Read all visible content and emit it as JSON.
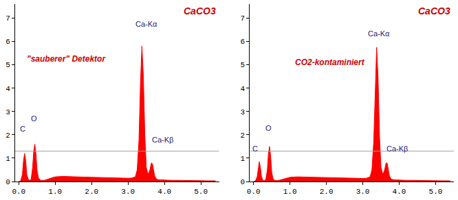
{
  "chart_data": [
    {
      "type": "area",
      "title": "CaCO3",
      "subtitle": "\"sauberer\" Detektor",
      "subtitle_at": {
        "x": 1.3,
        "y": 5.25
      },
      "color": "#ff0000",
      "grid": false,
      "threshold": 1.3,
      "x": [
        0.0,
        0.05,
        0.1,
        0.13,
        0.16,
        0.19,
        0.22,
        0.26,
        0.3,
        0.34,
        0.38,
        0.41,
        0.44,
        0.47,
        0.5,
        0.54,
        0.6,
        0.7,
        0.8,
        0.9,
        1.0,
        1.2,
        1.4,
        1.6,
        1.8,
        2.0,
        2.2,
        2.4,
        2.6,
        2.8,
        3.0,
        3.1,
        3.2,
        3.25,
        3.3,
        3.34,
        3.38,
        3.42,
        3.46,
        3.5,
        3.55,
        3.6,
        3.64,
        3.67,
        3.7,
        3.73,
        3.77,
        3.82,
        3.9,
        4.0,
        4.2,
        4.4,
        4.6,
        4.8,
        5.0,
        5.2,
        5.4
      ],
      "values": [
        0,
        0.02,
        0.3,
        0.9,
        1.2,
        0.9,
        0.3,
        0.1,
        0.05,
        0.1,
        0.6,
        1.3,
        1.6,
        1.2,
        0.5,
        0.15,
        0.05,
        0.05,
        0.1,
        0.15,
        0.2,
        0.22,
        0.2,
        0.2,
        0.19,
        0.18,
        0.17,
        0.16,
        0.15,
        0.15,
        0.14,
        0.15,
        0.2,
        0.5,
        1.8,
        4.2,
        5.8,
        4.5,
        2.0,
        0.6,
        0.3,
        0.5,
        0.8,
        0.75,
        0.5,
        0.25,
        0.12,
        0.08,
        0.07,
        0.06,
        0.05,
        0.05,
        0.04,
        0.04,
        0.03,
        0.03,
        0.03
      ],
      "xlim": [
        -0.1,
        5.5
      ],
      "xticks": [
        {
          "value": 0,
          "label": "0.0"
        },
        {
          "value": 1,
          "label": "1.0"
        },
        {
          "value": 2,
          "label": "2.0"
        },
        {
          "value": 3,
          "label": "3.0"
        },
        {
          "value": 4,
          "label": "4.0"
        },
        {
          "value": 5,
          "label": "5.0"
        }
      ],
      "ylim": [
        0,
        7.6
      ],
      "yticks": [
        0,
        1,
        2,
        3,
        4,
        5,
        6,
        7
      ],
      "annotations": [
        {
          "text": "C",
          "x": 0.1,
          "y": 2.25
        },
        {
          "text": "O",
          "x": 0.42,
          "y": 2.7
        },
        {
          "text": "Ca-Kα",
          "x": 3.5,
          "y": 6.75
        },
        {
          "text": "Ca-Kβ",
          "x": 3.95,
          "y": 1.8
        }
      ]
    },
    {
      "type": "area",
      "title": "CaCO3",
      "subtitle": "CO2-kontaminiert",
      "subtitle_at": {
        "x": 2.1,
        "y": 5.1
      },
      "color": "#ff0000",
      "grid": false,
      "threshold": 1.3,
      "x": [
        0.0,
        0.05,
        0.1,
        0.13,
        0.16,
        0.19,
        0.22,
        0.26,
        0.3,
        0.34,
        0.38,
        0.41,
        0.44,
        0.47,
        0.5,
        0.54,
        0.6,
        0.7,
        0.8,
        0.9,
        1.0,
        1.2,
        1.4,
        1.6,
        1.8,
        2.0,
        2.2,
        2.4,
        2.6,
        2.8,
        3.0,
        3.1,
        3.2,
        3.25,
        3.3,
        3.34,
        3.38,
        3.42,
        3.46,
        3.5,
        3.55,
        3.6,
        3.64,
        3.67,
        3.7,
        3.73,
        3.77,
        3.82,
        3.9,
        4.0,
        4.2,
        4.4,
        4.6,
        4.8,
        5.0,
        5.2,
        5.4
      ],
      "values": [
        0,
        0.02,
        0.2,
        0.6,
        0.85,
        0.6,
        0.2,
        0.05,
        0.03,
        0.1,
        0.5,
        1.2,
        1.5,
        1.1,
        0.4,
        0.1,
        0.04,
        0.05,
        0.1,
        0.14,
        0.18,
        0.2,
        0.19,
        0.18,
        0.18,
        0.17,
        0.16,
        0.15,
        0.14,
        0.14,
        0.13,
        0.14,
        0.2,
        0.5,
        1.7,
        4.1,
        5.75,
        4.4,
        1.9,
        0.6,
        0.3,
        0.5,
        0.8,
        0.78,
        0.5,
        0.25,
        0.12,
        0.08,
        0.07,
        0.06,
        0.05,
        0.05,
        0.04,
        0.04,
        0.03,
        0.03,
        0.03
      ],
      "xlim": [
        -0.1,
        5.5
      ],
      "xticks": [
        {
          "value": 0,
          "label": "0.0"
        },
        {
          "value": 1,
          "label": "1.0"
        },
        {
          "value": 2,
          "label": "2.0"
        },
        {
          "value": 3,
          "label": "3.0"
        },
        {
          "value": 4,
          "label": "4.0"
        },
        {
          "value": 5,
          "label": "5.0"
        }
      ],
      "ylim": [
        0,
        7.6
      ],
      "yticks": [
        0,
        1,
        2,
        3,
        4,
        5,
        6,
        7
      ],
      "annotations": [
        {
          "text": "C",
          "x": 0.05,
          "y": 1.4
        },
        {
          "text": "O",
          "x": 0.42,
          "y": 2.3
        },
        {
          "text": "Ca-Kα",
          "x": 3.45,
          "y": 6.35
        },
        {
          "text": "Ca-Kβ",
          "x": 3.95,
          "y": 1.4
        }
      ]
    }
  ]
}
